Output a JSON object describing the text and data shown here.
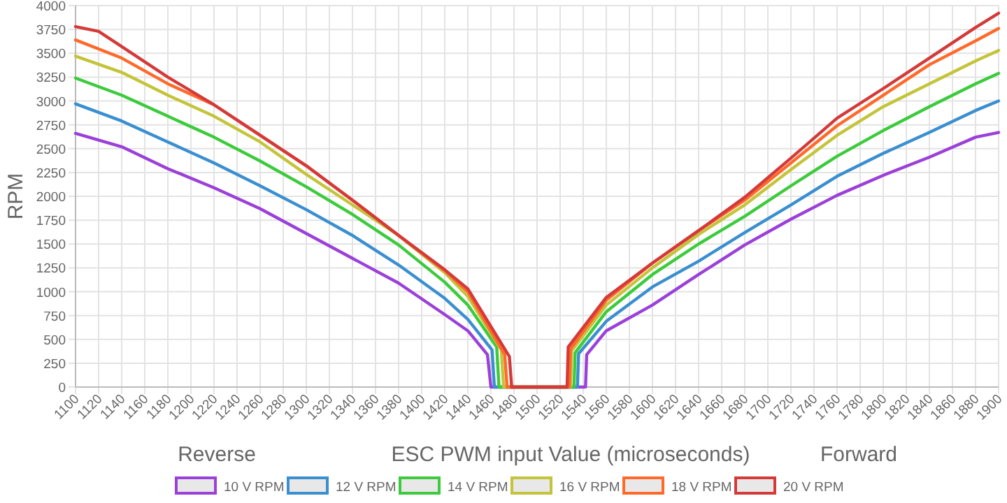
{
  "chart_data": {
    "type": "line",
    "xlabel": "ESC PWM input Value (microseconds)",
    "ylabel": "RPM",
    "annotations": [
      "Reverse",
      "Forward"
    ],
    "xlim": [
      1100,
      1900
    ],
    "xticks": [
      1100,
      1120,
      1140,
      1160,
      1180,
      1200,
      1220,
      1240,
      1260,
      1280,
      1300,
      1320,
      1340,
      1360,
      1380,
      1400,
      1420,
      1440,
      1460,
      1480,
      1500,
      1520,
      1540,
      1560,
      1580,
      1600,
      1620,
      1640,
      1660,
      1680,
      1700,
      1720,
      1740,
      1760,
      1780,
      1800,
      1820,
      1840,
      1860,
      1880,
      1900
    ],
    "ylim": [
      0,
      4000
    ],
    "yticks": [
      0,
      250,
      500,
      750,
      1000,
      1250,
      1500,
      1750,
      2000,
      2250,
      2500,
      2750,
      3000,
      3250,
      3500,
      3750,
      4000
    ],
    "grid": true,
    "legend": "bottom",
    "marker": "none",
    "line_style": "solid",
    "series": [
      {
        "name": "10 V RPM",
        "color": "#9b40d8",
        "x": [
          1100,
          1140,
          1180,
          1220,
          1260,
          1300,
          1340,
          1380,
          1420,
          1440,
          1457,
          1460,
          1542,
          1543,
          1560,
          1600,
          1640,
          1680,
          1720,
          1760,
          1800,
          1840,
          1880,
          1900
        ],
        "values": [
          2660,
          2520,
          2290,
          2090,
          1870,
          1610,
          1350,
          1090,
          760,
          590,
          340,
          0,
          0,
          340,
          590,
          860,
          1180,
          1490,
          1760,
          2010,
          2220,
          2410,
          2620,
          2670
        ]
      },
      {
        "name": "12 V RPM",
        "color": "#3a8fd0",
        "x": [
          1100,
          1140,
          1180,
          1220,
          1260,
          1300,
          1340,
          1380,
          1420,
          1440,
          1461,
          1463,
          1535,
          1536,
          1560,
          1600,
          1640,
          1680,
          1720,
          1760,
          1800,
          1840,
          1880,
          1900
        ],
        "values": [
          2970,
          2790,
          2570,
          2350,
          2110,
          1860,
          1590,
          1280,
          930,
          710,
          390,
          0,
          0,
          350,
          690,
          1050,
          1320,
          1620,
          1910,
          2210,
          2450,
          2670,
          2900,
          3000
        ]
      },
      {
        "name": "14 V RPM",
        "color": "#3ccb3c",
        "x": [
          1100,
          1140,
          1180,
          1220,
          1260,
          1300,
          1340,
          1380,
          1420,
          1440,
          1465,
          1467,
          1532,
          1533,
          1560,
          1600,
          1640,
          1680,
          1720,
          1760,
          1800,
          1840,
          1880,
          1900
        ],
        "values": [
          3240,
          3060,
          2840,
          2620,
          2370,
          2100,
          1810,
          1490,
          1100,
          860,
          420,
          0,
          0,
          360,
          790,
          1180,
          1500,
          1790,
          2110,
          2420,
          2690,
          2940,
          3180,
          3290
        ]
      },
      {
        "name": "16 V RPM",
        "color": "#c4c43a",
        "x": [
          1100,
          1140,
          1180,
          1220,
          1260,
          1300,
          1340,
          1380,
          1420,
          1440,
          1469,
          1471,
          1529,
          1530,
          1560,
          1600,
          1640,
          1680,
          1720,
          1760,
          1800,
          1840,
          1880,
          1900
        ],
        "values": [
          3470,
          3300,
          3060,
          2840,
          2570,
          2230,
          1910,
          1590,
          1200,
          950,
          390,
          0,
          0,
          380,
          860,
          1250,
          1600,
          1910,
          2280,
          2640,
          2940,
          3180,
          3420,
          3530
        ]
      },
      {
        "name": "18 V RPM",
        "color": "#ff6a2a",
        "x": [
          1100,
          1140,
          1180,
          1220,
          1260,
          1300,
          1340,
          1380,
          1420,
          1440,
          1472,
          1474,
          1528,
          1529,
          1560,
          1600,
          1640,
          1680,
          1720,
          1760,
          1800,
          1840,
          1880,
          1900
        ],
        "values": [
          3640,
          3450,
          3180,
          2960,
          2640,
          2320,
          1960,
          1590,
          1220,
          1000,
          340,
          0,
          0,
          400,
          910,
          1300,
          1640,
          1960,
          2350,
          2740,
          3060,
          3380,
          3630,
          3760
        ]
      },
      {
        "name": "20 V RPM",
        "color": "#d43a3a",
        "x": [
          1100,
          1120,
          1140,
          1180,
          1220,
          1260,
          1300,
          1340,
          1380,
          1420,
          1440,
          1476,
          1478,
          1526,
          1527,
          1560,
          1600,
          1640,
          1680,
          1720,
          1760,
          1800,
          1840,
          1880,
          1900
        ],
        "values": [
          3780,
          3730,
          3570,
          3250,
          2960,
          2640,
          2320,
          1960,
          1590,
          1230,
          1030,
          320,
          0,
          0,
          420,
          940,
          1300,
          1640,
          1990,
          2400,
          2820,
          3130,
          3450,
          3770,
          3920
        ]
      }
    ]
  }
}
